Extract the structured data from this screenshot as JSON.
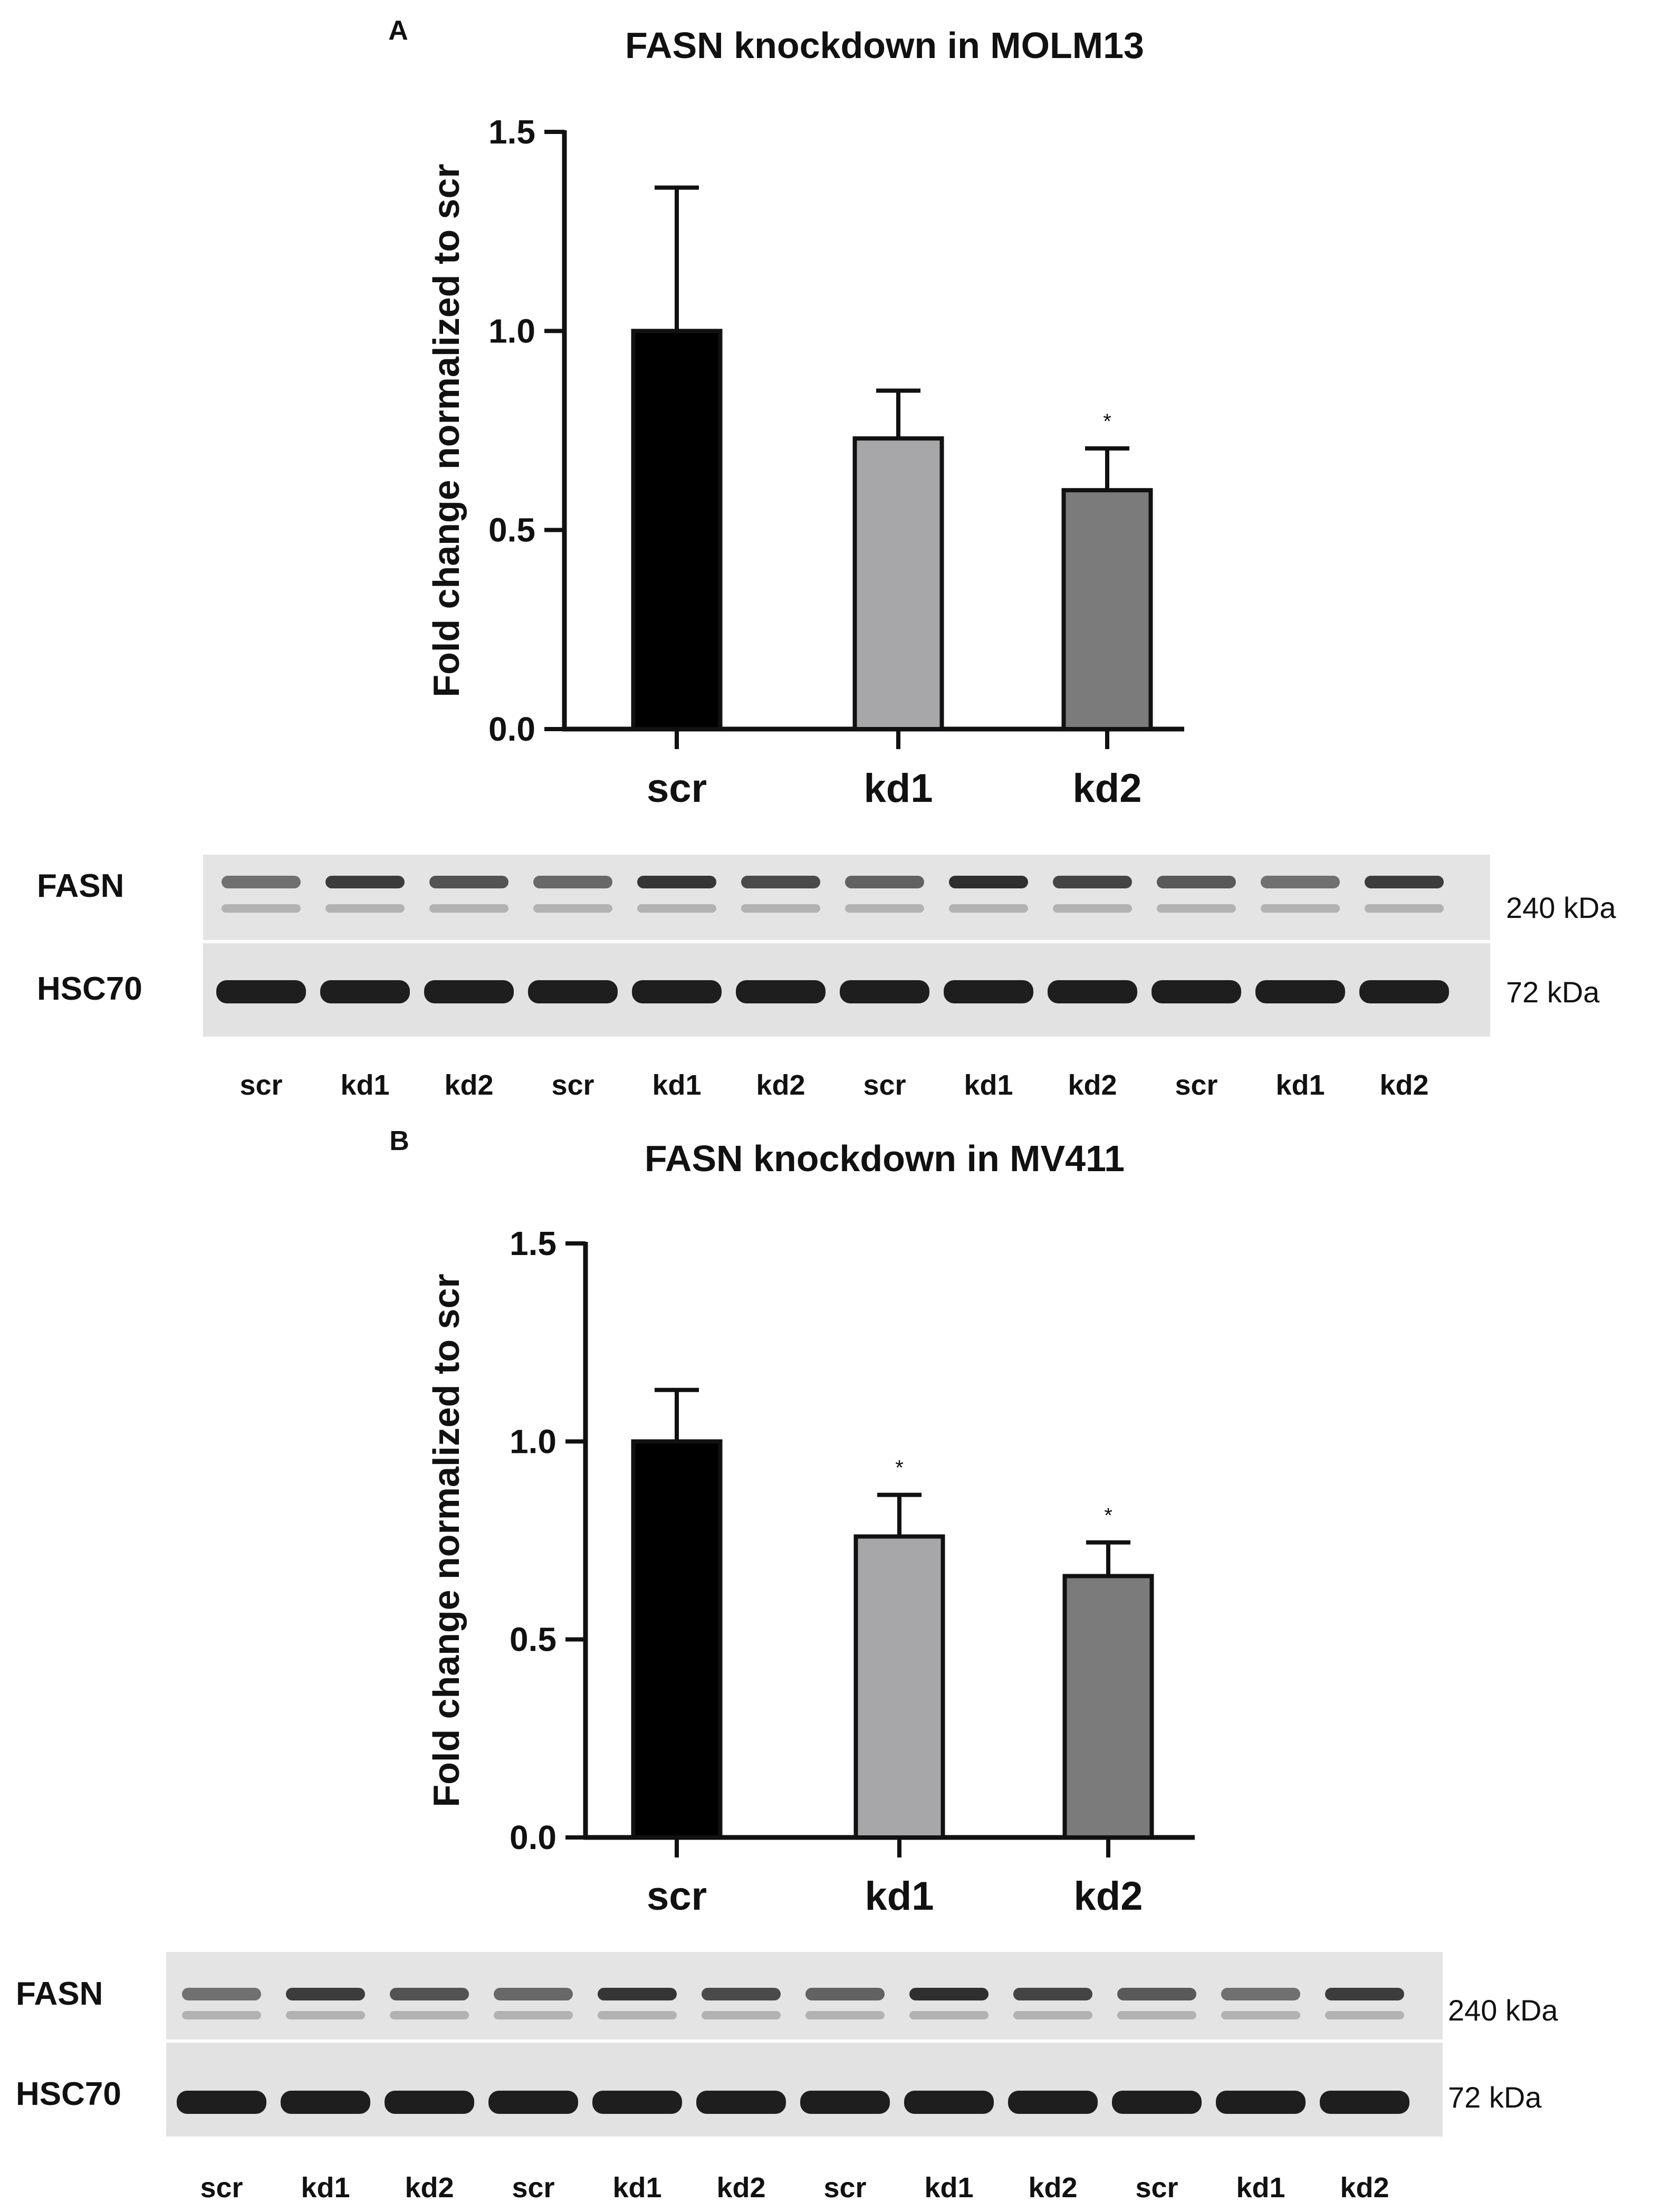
{
  "panels": [
    {
      "letter": "A",
      "chart": {
        "type": "bar",
        "title": "FASN knockdown in MOLM13",
        "ylabel": "Fold change normalized to scr",
        "categories": [
          "scr",
          "kd1",
          "kd2"
        ],
        "values": [
          1.0,
          0.73,
          0.6
        ],
        "errors": [
          0.36,
          0.12,
          0.105
        ],
        "significance": [
          "",
          "",
          "*"
        ],
        "colors": [
          "#000000",
          "#a7a7aa",
          "#7b7b7b"
        ],
        "ylim": [
          0,
          1.5
        ],
        "yticks": [
          "0.0",
          "0.5",
          "1.0",
          "1.5"
        ],
        "grid": false
      },
      "blot": {
        "rows": [
          {
            "protein": "FASN",
            "size": "240 kDa"
          },
          {
            "protein": "HSC70",
            "size": "72 kDa"
          }
        ],
        "lanes": [
          "scr",
          "kd1",
          "kd2",
          "scr",
          "kd1",
          "kd2",
          "scr",
          "kd1",
          "kd2",
          "scr",
          "kd1",
          "kd2"
        ]
      }
    },
    {
      "letter": "B",
      "chart": {
        "type": "bar",
        "title": "FASN knockdown in MV411",
        "ylabel": "Fold change normalized to scr",
        "categories": [
          "scr",
          "kd1",
          "kd2"
        ],
        "values": [
          1.0,
          0.76,
          0.66
        ],
        "errors": [
          0.13,
          0.105,
          0.085
        ],
        "significance": [
          "",
          "*",
          "*"
        ],
        "colors": [
          "#000000",
          "#a7a7aa",
          "#7b7b7b"
        ],
        "ylim": [
          0,
          1.5
        ],
        "yticks": [
          "0.0",
          "0.5",
          "1.0",
          "1.5"
        ],
        "grid": false
      },
      "blot": {
        "rows": [
          {
            "protein": "FASN",
            "size": "240 kDa"
          },
          {
            "protein": "HSC70",
            "size": "72 kDa"
          }
        ],
        "lanes": [
          "scr",
          "kd1",
          "kd2",
          "scr",
          "kd1",
          "kd2",
          "scr",
          "kd1",
          "kd2",
          "scr",
          "kd1",
          "kd2"
        ]
      }
    }
  ],
  "chart_data": [
    {
      "type": "bar",
      "title": "FASN knockdown in MOLM13",
      "ylabel": "Fold change normalized to scr",
      "categories": [
        "scr",
        "kd1",
        "kd2"
      ],
      "values": [
        1.0,
        0.73,
        0.6
      ],
      "errors": [
        0.36,
        0.12,
        0.105
      ],
      "ylim": [
        0,
        1.5
      ]
    },
    {
      "type": "bar",
      "title": "FASN knockdown in MV411",
      "ylabel": "Fold change normalized to scr",
      "categories": [
        "scr",
        "kd1",
        "kd2"
      ],
      "values": [
        1.0,
        0.76,
        0.66
      ],
      "errors": [
        0.13,
        0.105,
        0.085
      ],
      "ylim": [
        0,
        1.5
      ]
    }
  ]
}
